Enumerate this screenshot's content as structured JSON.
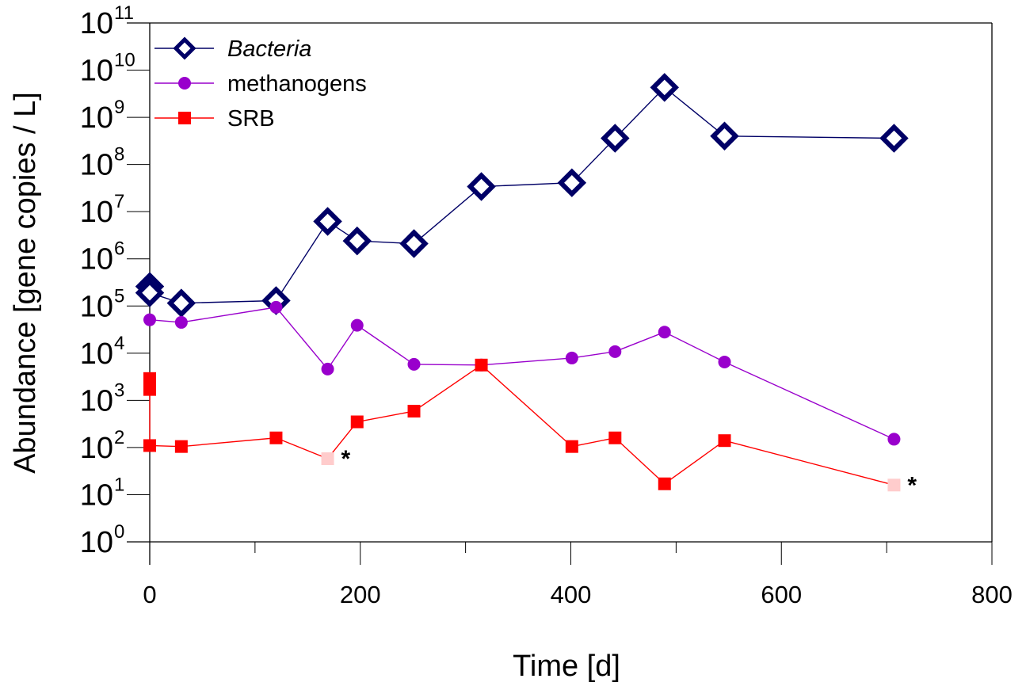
{
  "chart_data": {
    "type": "line",
    "title": "",
    "xlabel": "Time [d]",
    "ylabel": "Abundance  [gene copies / L]",
    "yscale": "log",
    "xlim": [
      0,
      800
    ],
    "ylim": [
      1,
      100000000000
    ],
    "x_ticks": [
      0,
      200,
      400,
      600,
      800
    ],
    "x_tick_labels": [
      "0",
      "200",
      "400",
      "600",
      "800"
    ],
    "x_minor_ticks": [
      100,
      300,
      500,
      700
    ],
    "y_tick_exponents": [
      0,
      1,
      2,
      3,
      4,
      5,
      6,
      7,
      8,
      9,
      10,
      11
    ],
    "y_tick_base": "10",
    "grid": false,
    "legend_position": "top-left",
    "series": [
      {
        "name": "Bacteria",
        "italic": true,
        "color": "#000066",
        "marker": "diamond-open",
        "points": [
          {
            "x": 0,
            "y": 260000
          },
          {
            "x": 0,
            "y": 190000
          },
          {
            "x": 30,
            "y": 115000
          },
          {
            "x": 120,
            "y": 130000
          },
          {
            "x": 169,
            "y": 6200000
          },
          {
            "x": 197,
            "y": 2400000
          },
          {
            "x": 251,
            "y": 2100000
          },
          {
            "x": 315,
            "y": 34000000
          },
          {
            "x": 401,
            "y": 41000000
          },
          {
            "x": 442,
            "y": 360000000
          },
          {
            "x": 489,
            "y": 4300000000
          },
          {
            "x": 546,
            "y": 400000000
          },
          {
            "x": 707,
            "y": 360000000
          }
        ]
      },
      {
        "name": "methanogens",
        "italic": false,
        "color": "#9900CC",
        "marker": "circle",
        "points": [
          {
            "x": 0,
            "y": 51000
          },
          {
            "x": 30,
            "y": 45000
          },
          {
            "x": 120,
            "y": 94000
          },
          {
            "x": 169,
            "y": 4600
          },
          {
            "x": 197,
            "y": 39000
          },
          {
            "x": 251,
            "y": 5800
          },
          {
            "x": 315,
            "y": 5600
          },
          {
            "x": 401,
            "y": 7900
          },
          {
            "x": 442,
            "y": 10800
          },
          {
            "x": 489,
            "y": 28000
          },
          {
            "x": 546,
            "y": 6500
          },
          {
            "x": 707,
            "y": 150
          }
        ]
      },
      {
        "name": "SRB",
        "italic": false,
        "color": "#FF0000",
        "marker": "square",
        "points": [
          {
            "x": 0,
            "y": 2900
          },
          {
            "x": 0,
            "y": 1700
          },
          {
            "x": 0,
            "y": 110
          },
          {
            "x": 30,
            "y": 105
          },
          {
            "x": 120,
            "y": 160
          },
          {
            "x": 169,
            "y": 58,
            "flagged": true
          },
          {
            "x": 197,
            "y": 350
          },
          {
            "x": 251,
            "y": 590
          },
          {
            "x": 315,
            "y": 5600
          },
          {
            "x": 401,
            "y": 105
          },
          {
            "x": 442,
            "y": 160
          },
          {
            "x": 489,
            "y": 17
          },
          {
            "x": 546,
            "y": 140
          },
          {
            "x": 707,
            "y": 16,
            "flagged": true
          }
        ]
      }
    ],
    "flag_color": "#FFCCCC",
    "annotations": [
      {
        "text": "*",
        "x": 169,
        "y": 58,
        "series": "SRB"
      },
      {
        "text": "*",
        "x": 707,
        "y": 16,
        "series": "SRB"
      }
    ]
  }
}
